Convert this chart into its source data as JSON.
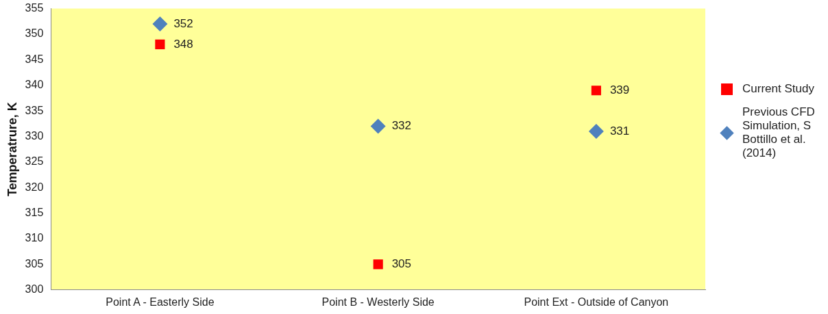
{
  "chart_data": {
    "type": "scatter",
    "ylabel": "Temperatrure, K",
    "categories": [
      "Point A - Easterly Side",
      "Point B - Westerly Side",
      "Point Ext - Outside of Canyon"
    ],
    "series": [
      {
        "name": "Current Study",
        "color": "#ff0000",
        "marker": "square",
        "values": [
          348,
          305,
          339
        ]
      },
      {
        "name": "Previous CFD Simulation, S Bottillo et al. (2014)",
        "color": "#4f81bd",
        "marker": "diamond",
        "values": [
          352,
          332,
          331
        ]
      }
    ],
    "ylim": [
      300,
      355
    ],
    "yticks": [
      300,
      305,
      310,
      315,
      320,
      325,
      330,
      335,
      340,
      345,
      350,
      355
    ],
    "grid": false,
    "legend": "right",
    "data_labels": true
  }
}
